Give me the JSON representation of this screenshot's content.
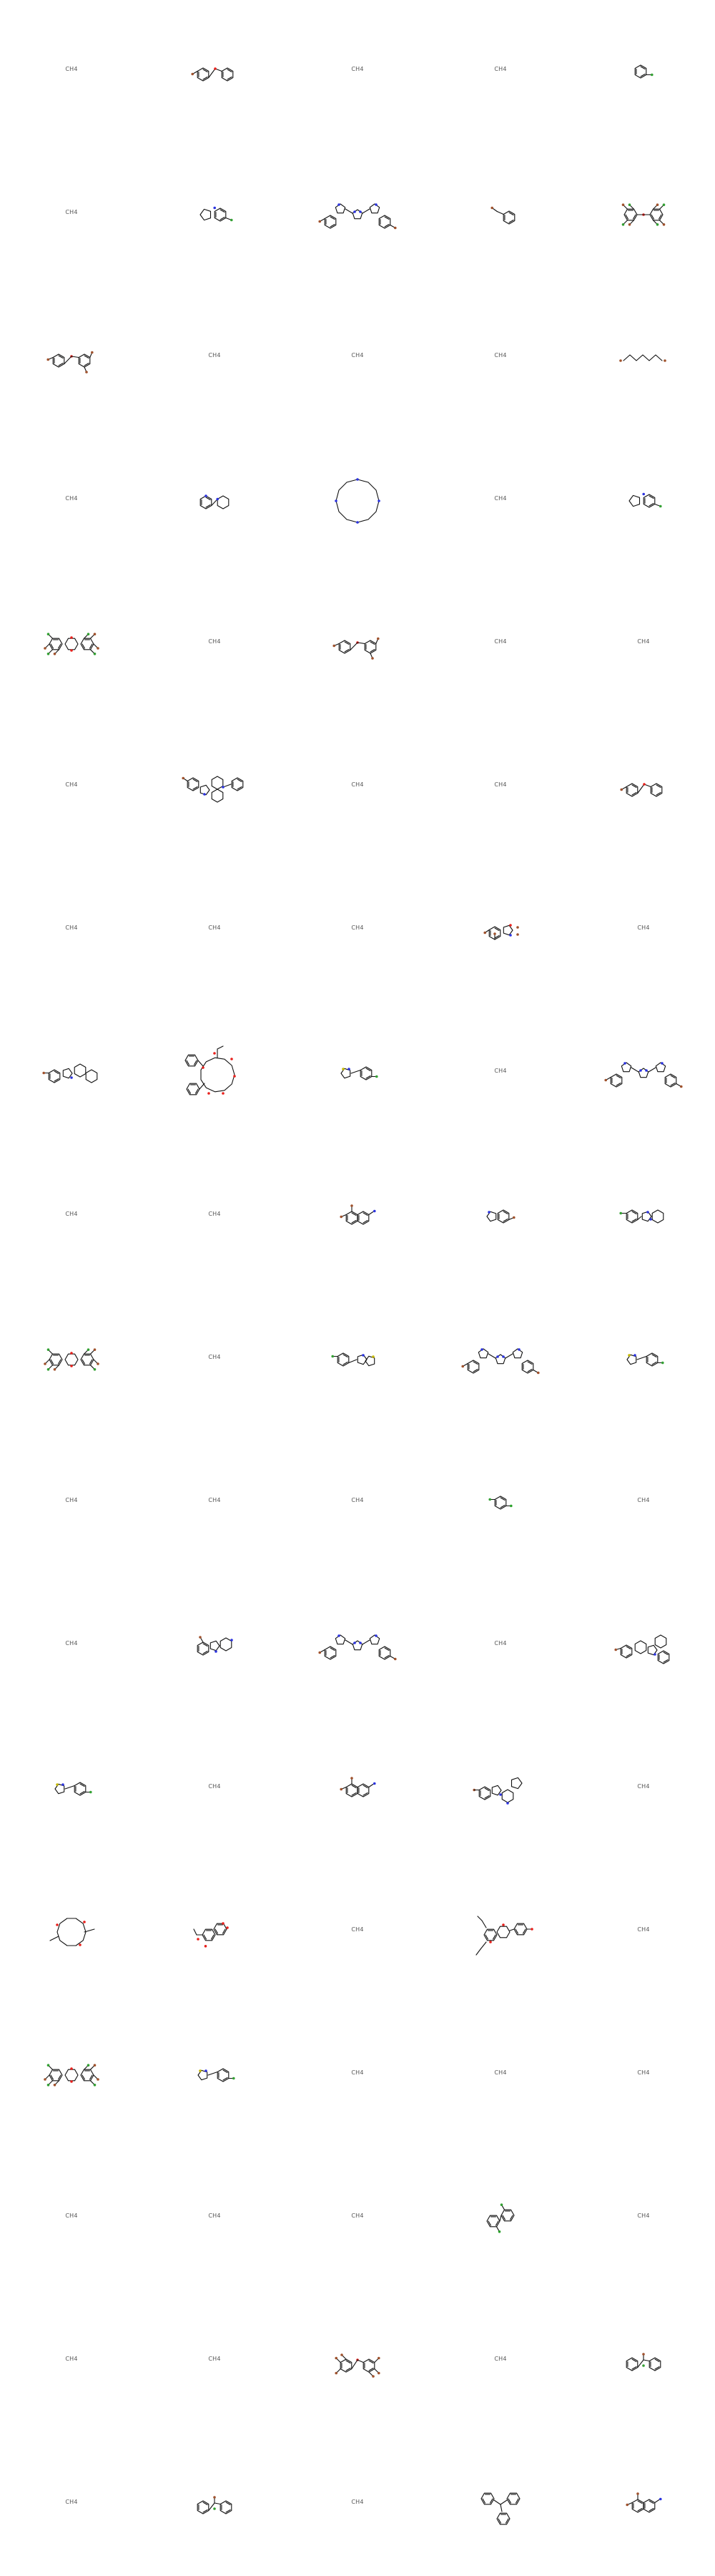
{
  "grid": {
    "columns": 5,
    "rows": 18
  },
  "cells": [
    {
      "kind": "text",
      "text": "CH4"
    },
    {
      "kind": "mol",
      "mol": "m_diphenyl_ether"
    },
    {
      "kind": "text",
      "text": "CH4"
    },
    {
      "kind": "text",
      "text": "CH4"
    },
    {
      "kind": "mol",
      "mol": "m_fluorobenzene"
    },
    {
      "kind": "text",
      "text": "CH4"
    },
    {
      "kind": "mol",
      "mol": "m_pyrrolobenzimidazole"
    },
    {
      "kind": "mol",
      "mol": "m_bis_indazolyl_imidazole"
    },
    {
      "kind": "mol",
      "mol": "m_benzyl_bromide"
    },
    {
      "kind": "mol",
      "mol": "m_polyhalo_diphenyl_ether"
    },
    {
      "kind": "mol",
      "mol": "m_dibromo_diphenyl_ether"
    },
    {
      "kind": "text",
      "text": "CH4"
    },
    {
      "kind": "text",
      "text": "CH4"
    },
    {
      "kind": "text",
      "text": "CH4"
    },
    {
      "kind": "mol",
      "mol": "m_dibromohexane"
    },
    {
      "kind": "text",
      "text": "CH4"
    },
    {
      "kind": "mol",
      "mol": "m_pyridinyl_pyridine"
    },
    {
      "kind": "mol",
      "mol": "m_macrocycle"
    },
    {
      "kind": "text",
      "text": "CH4"
    },
    {
      "kind": "mol",
      "mol": "m_pyrrolobenzimidazole"
    },
    {
      "kind": "mol",
      "mol": "m_polyhalo_dibenzodioxin"
    },
    {
      "kind": "text",
      "text": "CH4"
    },
    {
      "kind": "mol",
      "mol": "m_dibromo_diphenyl_ether"
    },
    {
      "kind": "text",
      "text": "CH4"
    },
    {
      "kind": "text",
      "text": "CH4"
    },
    {
      "kind": "text",
      "text": "CH4"
    },
    {
      "kind": "mol",
      "mol": "m_indoloquinolizine"
    },
    {
      "kind": "text",
      "text": "CH4"
    },
    {
      "kind": "text",
      "text": "CH4"
    },
    {
      "kind": "mol",
      "mol": "m_diphenyl_ether"
    },
    {
      "kind": "text",
      "text": "CH4"
    },
    {
      "kind": "text",
      "text": "CH4"
    },
    {
      "kind": "text",
      "text": "CH4"
    },
    {
      "kind": "mol",
      "mol": "m_bromo_benzofuran"
    },
    {
      "kind": "text",
      "text": "CH4"
    },
    {
      "kind": "mol",
      "mol": "m_bromo_indoloazepine"
    },
    {
      "kind": "mol",
      "mol": "m_taxane"
    },
    {
      "kind": "mol",
      "mol": "m_thiazolyl_phenyl"
    },
    {
      "kind": "text",
      "text": "CH4"
    },
    {
      "kind": "mol",
      "mol": "m_bis_indazolyl_imidazole"
    },
    {
      "kind": "text",
      "text": "CH4"
    },
    {
      "kind": "text",
      "text": "CH4"
    },
    {
      "kind": "mol",
      "mol": "m_bromo_naphthalene"
    },
    {
      "kind": "mol",
      "mol": "m_indole"
    },
    {
      "kind": "mol",
      "mol": "m_phenyl_imidazopyridine"
    },
    {
      "kind": "mol",
      "mol": "m_polyhalo_dibenzodioxin"
    },
    {
      "kind": "text",
      "text": "CH4"
    },
    {
      "kind": "mol",
      "mol": "m_phenyl_imidazothiazole"
    },
    {
      "kind": "mol",
      "mol": "m_bis_indazolyl_imidazole"
    },
    {
      "kind": "mol",
      "mol": "m_thiazolyl_phenyl"
    },
    {
      "kind": "text",
      "text": "CH4"
    },
    {
      "kind": "text",
      "text": "CH4"
    },
    {
      "kind": "text",
      "text": "CH4"
    },
    {
      "kind": "mol",
      "mol": "m_dihalo_benzene"
    },
    {
      "kind": "text",
      "text": "CH4"
    },
    {
      "kind": "text",
      "text": "CH4"
    },
    {
      "kind": "mol",
      "mol": "m_pyridoindole"
    },
    {
      "kind": "mol",
      "mol": "m_bis_indazolyl_imidazole"
    },
    {
      "kind": "text",
      "text": "CH4"
    },
    {
      "kind": "mol",
      "mol": "m_phenyl_tetrahydro_carboline"
    },
    {
      "kind": "mol",
      "mol": "m_thiazolyl_phenyl"
    },
    {
      "kind": "text",
      "text": "CH4"
    },
    {
      "kind": "mol",
      "mol": "m_bromo_naphthalene"
    },
    {
      "kind": "mol",
      "mol": "m_carbazole_pyrrolidine"
    },
    {
      "kind": "text",
      "text": "CH4"
    },
    {
      "kind": "mol",
      "mol": "m_macrolide"
    },
    {
      "kind": "mol",
      "mol": "m_coumarin"
    },
    {
      "kind": "text",
      "text": "CH4"
    },
    {
      "kind": "mol",
      "mol": "m_flavonoid"
    },
    {
      "kind": "text",
      "text": "CH4"
    },
    {
      "kind": "mol",
      "mol": "m_polyhalo_dibenzodioxin"
    },
    {
      "kind": "mol",
      "mol": "m_thiazolyl_phenyl"
    },
    {
      "kind": "text",
      "text": "CH4"
    },
    {
      "kind": "text",
      "text": "CH4"
    },
    {
      "kind": "text",
      "text": "CH4"
    },
    {
      "kind": "text",
      "text": "CH4"
    },
    {
      "kind": "text",
      "text": "CH4"
    },
    {
      "kind": "text",
      "text": "CH4"
    },
    {
      "kind": "mol",
      "mol": "m_dihalo_biphenyl"
    },
    {
      "kind": "text",
      "text": "CH4"
    },
    {
      "kind": "text",
      "text": "CH4"
    },
    {
      "kind": "text",
      "text": "CH4"
    },
    {
      "kind": "mol",
      "mol": "m_polybromo_diphenyl_ether"
    },
    {
      "kind": "text",
      "text": "CH4"
    },
    {
      "kind": "mol",
      "mol": "m_diphenyl_methane"
    },
    {
      "kind": "text",
      "text": "CH4"
    },
    {
      "kind": "mol",
      "mol": "m_diphenyl_methane"
    },
    {
      "kind": "text",
      "text": "CH4"
    },
    {
      "kind": "mol",
      "mol": "m_triphenyl_ethylene"
    },
    {
      "kind": "mol",
      "mol": "m_bromo_naphthalene"
    }
  ],
  "atom_colors": {
    "C": "#111111",
    "O": "#e8201c",
    "N": "#2b33e0",
    "Br": "#a0522d",
    "F": "#33a033",
    "Cl": "#2aa02a",
    "S": "#c4b800"
  }
}
